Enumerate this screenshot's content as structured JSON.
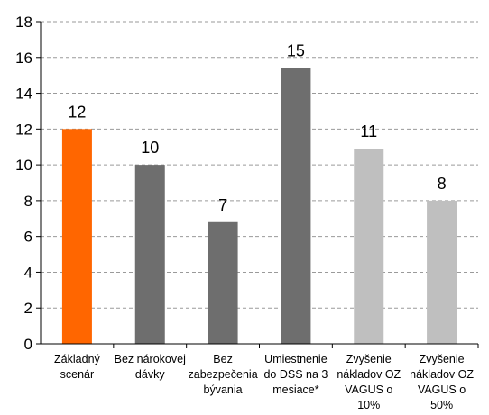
{
  "chart_data": {
    "type": "bar",
    "title": "",
    "xlabel": "",
    "ylabel": "",
    "ylim": [
      0,
      18
    ],
    "yticks": [
      0,
      2,
      4,
      6,
      8,
      10,
      12,
      14,
      16,
      18
    ],
    "grid": "horizontal-dashed",
    "categories": [
      [
        "Základný",
        "scenár"
      ],
      [
        "Bez nárokovej",
        "dávky"
      ],
      [
        "Bez",
        "zabezpečenia",
        "bývania"
      ],
      [
        "Umiestnenie",
        "do DSS na 3",
        "mesiace*"
      ],
      [
        "Zvyšenie",
        "nákladov OZ",
        "VAGUS o",
        "10%"
      ],
      [
        "Zvyšenie",
        "nákladov OZ",
        "VAGUS o",
        "50%"
      ]
    ],
    "values": [
      12.0,
      10.0,
      6.8,
      15.4,
      10.9,
      8.0
    ],
    "data_labels": [
      "12",
      "10",
      "7",
      "15",
      "11",
      "8"
    ],
    "colors": [
      "#FF6600",
      "#6E6E6E",
      "#6E6E6E",
      "#6E6E6E",
      "#BFBFBF",
      "#BFBFBF"
    ]
  }
}
